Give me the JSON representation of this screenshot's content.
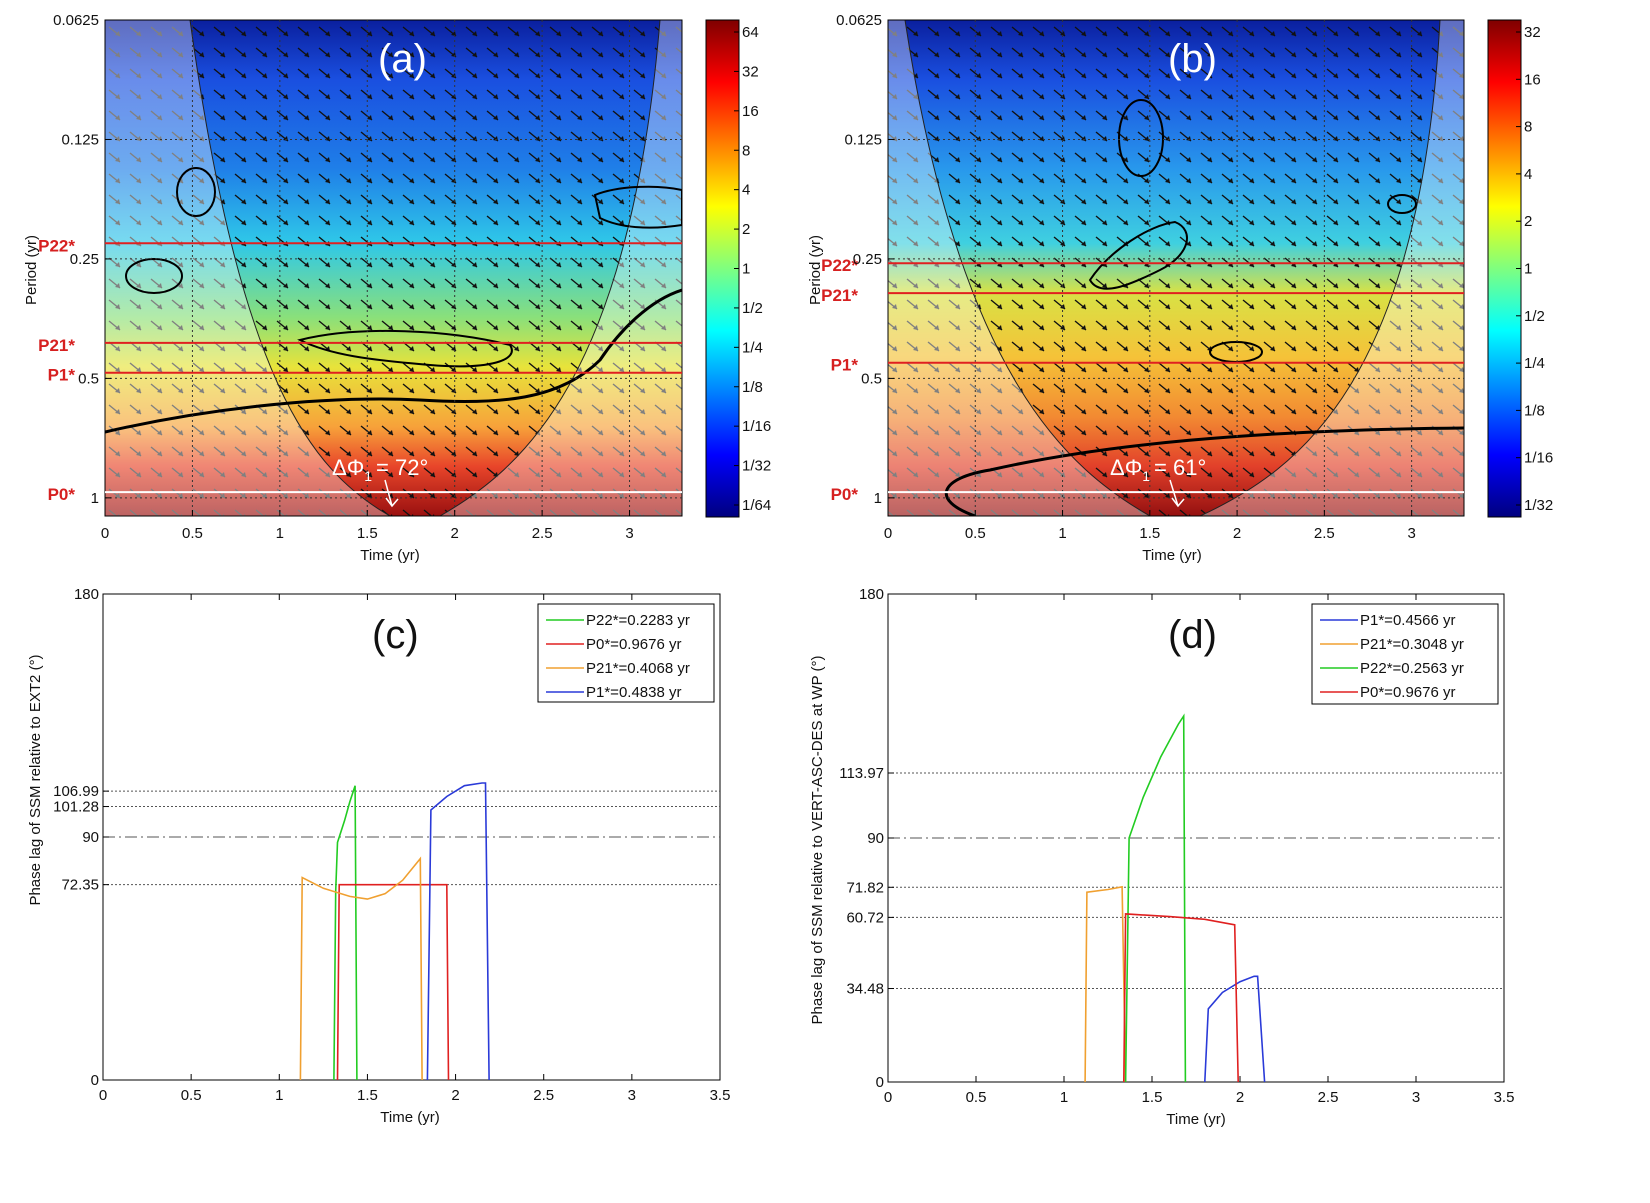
{
  "colors": {
    "jet": [
      "#00007f",
      "#0000ff",
      "#007fff",
      "#00ffff",
      "#7fff7f",
      "#ffff00",
      "#ff7f00",
      "#ff0000",
      "#7f0000"
    ],
    "red_line": "#e02020",
    "green": "#22cc22",
    "orange": "#f0a030",
    "blue": "#2a3ad8",
    "red": "#e02020"
  },
  "wavelet_panels": [
    {
      "id": "a",
      "panel_label": "(a)",
      "xlabel": "Time (yr)",
      "ylabel": "Period (yr)",
      "x_ticks": [
        "0",
        "0.5",
        "1",
        "1.5",
        "2",
        "2.5",
        "3"
      ],
      "y_ticks": [
        "0.0625",
        "0.125",
        "0.25",
        "0.5",
        "1"
      ],
      "period_lines": [
        {
          "label": "P22*",
          "period": 0.2283
        },
        {
          "label": "P21*",
          "period": 0.4068
        },
        {
          "label": "P1*",
          "period": 0.4838
        },
        {
          "label": "P0*",
          "period": 0.9676
        }
      ],
      "delta_phi_label": "ΔΦ",
      "delta_phi_sub": "1",
      "delta_phi_value": "= 72°",
      "colorbar_labels": [
        "64",
        "32",
        "16",
        "8",
        "4",
        "2",
        "1",
        "1/2",
        "1/4",
        "1/8",
        "1/16",
        "1/32",
        "1/64"
      ]
    },
    {
      "id": "b",
      "panel_label": "(b)",
      "xlabel": "Time (yr)",
      "ylabel": "Period (yr)",
      "x_ticks": [
        "0",
        "0.5",
        "1",
        "1.5",
        "2",
        "2.5",
        "3"
      ],
      "y_ticks": [
        "0.0625",
        "0.125",
        "0.25",
        "0.5",
        "1"
      ],
      "period_lines": [
        {
          "label": "P22*",
          "period": 0.2563
        },
        {
          "label": "P21*",
          "period": 0.3048
        },
        {
          "label": "P1*",
          "period": 0.4566
        },
        {
          "label": "P0*",
          "period": 0.9676
        }
      ],
      "delta_phi_label": "ΔΦ",
      "delta_phi_sub": "1",
      "delta_phi_value": "= 61°",
      "colorbar_labels": [
        "32",
        "16",
        "8",
        "4",
        "2",
        "1",
        "1/2",
        "1/4",
        "1/8",
        "1/16",
        "1/32"
      ]
    }
  ],
  "chart_data": [
    {
      "type": "line",
      "panel_label": "(c)",
      "xlabel": "Time (yr)",
      "ylabel": "Phase lag of SSM relative to EXT2 (°)",
      "xlim": [
        0,
        3.5
      ],
      "ylim": [
        0,
        180
      ],
      "x_ticks": [
        "0",
        "0.5",
        "1",
        "1.5",
        "2",
        "2.5",
        "3",
        "3.5"
      ],
      "y_tick_labels": [
        {
          "value": 0,
          "label": "0"
        },
        {
          "value": 72.35,
          "label": "72.35"
        },
        {
          "value": 90,
          "label": "90"
        },
        {
          "value": 101.28,
          "label": "101.28"
        },
        {
          "value": 106.99,
          "label": "106.99"
        },
        {
          "value": 180,
          "label": "180"
        }
      ],
      "reference_lines": [
        72.35,
        90,
        101.28,
        106.99
      ],
      "series": [
        {
          "name": "P22*=0.2283 yr",
          "color": "green",
          "points": [
            [
              1.31,
              0
            ],
            [
              1.32,
              70
            ],
            [
              1.33,
              88
            ],
            [
              1.37,
              96
            ],
            [
              1.4,
              103
            ],
            [
              1.43,
              109
            ],
            [
              1.44,
              0
            ]
          ]
        },
        {
          "name": "P0*=0.9676 yr",
          "color": "red",
          "points": [
            [
              1.33,
              0
            ],
            [
              1.34,
              72.35
            ],
            [
              1.95,
              72.35
            ],
            [
              1.96,
              0
            ]
          ]
        },
        {
          "name": "P21*=0.4068 yr",
          "color": "orange",
          "points": [
            [
              1.12,
              0
            ],
            [
              1.13,
              75
            ],
            [
              1.25,
              71
            ],
            [
              1.4,
              68
            ],
            [
              1.5,
              67
            ],
            [
              1.6,
              69
            ],
            [
              1.7,
              74
            ],
            [
              1.8,
              82
            ],
            [
              1.81,
              0
            ]
          ]
        },
        {
          "name": "P1*=0.4838 yr",
          "color": "blue",
          "points": [
            [
              1.84,
              0
            ],
            [
              1.86,
              100
            ],
            [
              1.95,
              105
            ],
            [
              2.05,
              109
            ],
            [
              2.15,
              110
            ],
            [
              2.17,
              110
            ],
            [
              2.19,
              0
            ]
          ]
        }
      ]
    },
    {
      "type": "line",
      "panel_label": "(d)",
      "xlabel": "Time (yr)",
      "ylabel": "Phase lag of SSM relative to VERT-ASC-DES at WP (°)",
      "xlim": [
        0,
        3.5
      ],
      "ylim": [
        0,
        180
      ],
      "x_ticks": [
        "0",
        "0.5",
        "1",
        "1.5",
        "2",
        "2.5",
        "3",
        "3.5"
      ],
      "y_tick_labels": [
        {
          "value": 0,
          "label": "0"
        },
        {
          "value": 34.48,
          "label": "34.48"
        },
        {
          "value": 60.72,
          "label": "60.72"
        },
        {
          "value": 71.82,
          "label": "71.82"
        },
        {
          "value": 90,
          "label": "90"
        },
        {
          "value": 113.97,
          "label": "113.97"
        },
        {
          "value": 180,
          "label": "180"
        }
      ],
      "reference_lines": [
        34.48,
        60.72,
        71.82,
        90,
        113.97
      ],
      "series": [
        {
          "name": "P1*=0.4566 yr",
          "color": "blue",
          "points": [
            [
              1.8,
              0
            ],
            [
              1.82,
              27
            ],
            [
              1.9,
              33
            ],
            [
              2.0,
              37
            ],
            [
              2.08,
              39
            ],
            [
              2.1,
              39
            ],
            [
              2.14,
              0
            ]
          ]
        },
        {
          "name": "P21*=0.3048 yr",
          "color": "orange",
          "points": [
            [
              1.12,
              0
            ],
            [
              1.13,
              70
            ],
            [
              1.25,
              71
            ],
            [
              1.33,
              72
            ],
            [
              1.35,
              0
            ]
          ]
        },
        {
          "name": "P22*=0.2563 yr",
          "color": "green",
          "points": [
            [
              1.35,
              0
            ],
            [
              1.37,
              90
            ],
            [
              1.45,
              105
            ],
            [
              1.55,
              120
            ],
            [
              1.65,
              132
            ],
            [
              1.68,
              135
            ],
            [
              1.69,
              0
            ]
          ]
        },
        {
          "name": "P0*=0.9676 yr",
          "color": "red",
          "points": [
            [
              1.34,
              0
            ],
            [
              1.35,
              62
            ],
            [
              1.6,
              61
            ],
            [
              1.8,
              60
            ],
            [
              1.97,
              58
            ],
            [
              1.99,
              0
            ]
          ]
        }
      ]
    }
  ]
}
